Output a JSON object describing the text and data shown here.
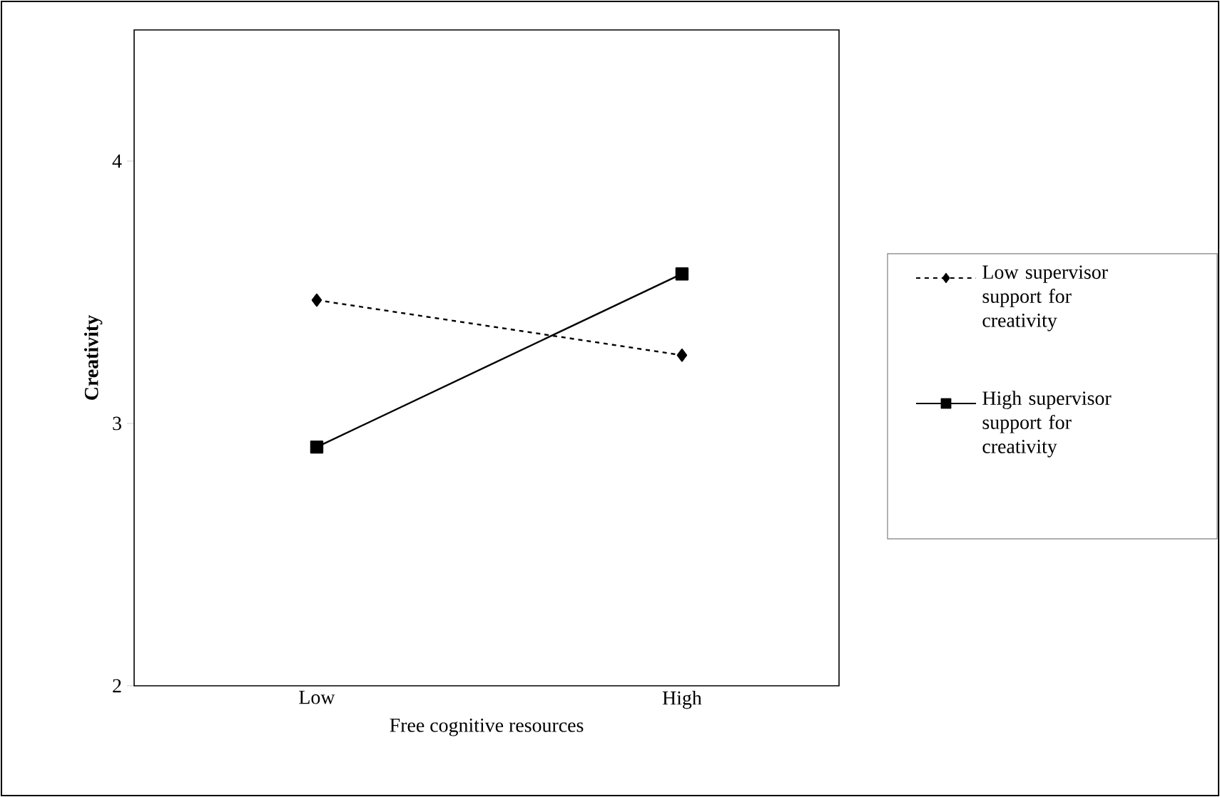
{
  "chart_data": {
    "type": "line",
    "xlabel": "Free cognitive resources",
    "ylabel": "Creativity",
    "categories": [
      "Low",
      "High"
    ],
    "series": [
      {
        "name": "Low supervisor support for creativity",
        "color": "#000000",
        "values": [
          3.47,
          3.26
        ],
        "marker": "diamond",
        "line_style": "dashed"
      },
      {
        "name": "High supervisor support for creativity",
        "color": "#000000",
        "values": [
          2.91,
          3.57
        ],
        "marker": "square",
        "line_style": "solid"
      }
    ],
    "ylim": [
      2,
      4.5
    ],
    "yticks": [
      2,
      3,
      4
    ],
    "grid": false,
    "legend": "right"
  }
}
